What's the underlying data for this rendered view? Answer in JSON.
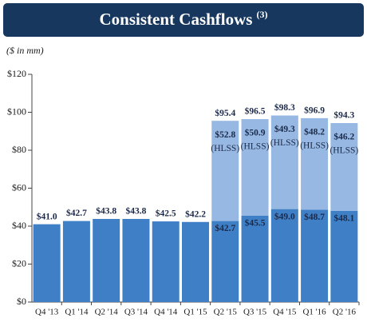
{
  "chart_data": {
    "type": "stacked-bar",
    "title": "Consistent Cashflows",
    "title_note": "(3)",
    "subtitle": "($ in mm)",
    "categories": [
      "Q4 '13",
      "Q1 '14",
      "Q2 '14",
      "Q3 '14",
      "Q4 '14",
      "Q1 '15",
      "Q2 '15",
      "Q3 '15",
      "Q4 '15",
      "Q1 '16",
      "Q2 '16"
    ],
    "series": [
      {
        "color": "#3f7fc6",
        "values": [
          41.0,
          42.7,
          43.8,
          43.8,
          42.5,
          42.2,
          42.7,
          45.5,
          49.0,
          48.7,
          48.1
        ],
        "value_labels": [
          "$41.0",
          "$42.7",
          "$43.8",
          "$43.8",
          "$42.5",
          "$42.2",
          "$42.7",
          "$45.5",
          "$49.0",
          "$48.7",
          "$48.1"
        ]
      },
      {
        "name": "(HLSS)",
        "color": "#96b8e2",
        "values": [
          null,
          null,
          null,
          null,
          null,
          null,
          52.8,
          50.9,
          49.3,
          48.2,
          46.2
        ],
        "value_labels": [
          null,
          null,
          null,
          null,
          null,
          null,
          "$52.8",
          "$50.9",
          "$49.3",
          "$48.2",
          "$46.2"
        ]
      }
    ],
    "totals": [
      null,
      null,
      null,
      null,
      null,
      null,
      95.4,
      96.5,
      98.3,
      96.9,
      94.3
    ],
    "total_labels": [
      null,
      null,
      null,
      null,
      null,
      null,
      "$95.4",
      "$96.5",
      "$98.3",
      "$96.9",
      "$94.3"
    ],
    "ylim": [
      0,
      120
    ],
    "yticks": [
      {
        "value": 0,
        "label": "$0"
      },
      {
        "value": 20,
        "label": "$20"
      },
      {
        "value": 40,
        "label": "$40"
      },
      {
        "value": 60,
        "label": "$60"
      },
      {
        "value": 80,
        "label": "$80"
      },
      {
        "value": 100,
        "label": "$100"
      },
      {
        "value": 120,
        "label": "$120"
      }
    ],
    "grid": false
  }
}
